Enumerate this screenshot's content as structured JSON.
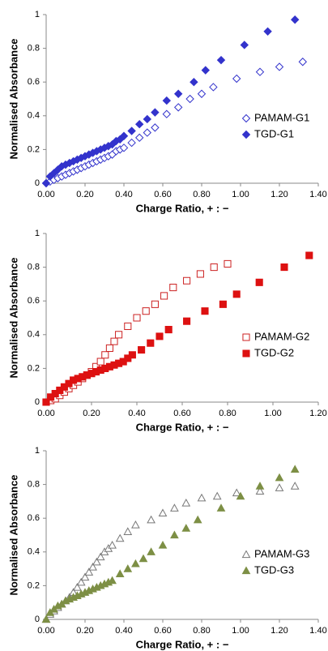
{
  "chart_data": [
    {
      "type": "scatter",
      "xlabel": "Charge Ratio, + : −",
      "ylabel": "Normalised Absorbance",
      "xlim": [
        0,
        1.4
      ],
      "ylim": [
        0,
        1
      ],
      "xticks": [
        {
          "value": 0,
          "label": "0.00"
        },
        {
          "value": 0.2,
          "label": "0.20"
        },
        {
          "value": 0.4,
          "label": "0.40"
        },
        {
          "value": 0.6,
          "label": "0.60"
        },
        {
          "value": 0.8,
          "label": "0.80"
        },
        {
          "value": 1.0,
          "label": "1.00"
        },
        {
          "value": 1.2,
          "label": "1.20"
        },
        {
          "value": 1.4,
          "label": "1.40"
        }
      ],
      "yticks": [
        0,
        0.2,
        0.4,
        0.6,
        0.8,
        1
      ],
      "series": [
        {
          "name": "PAMAM-G1",
          "color": "#3333cc",
          "marker": "diamond",
          "filled": false,
          "x": [
            0,
            0.02,
            0.04,
            0.06,
            0.08,
            0.1,
            0.12,
            0.14,
            0.16,
            0.18,
            0.2,
            0.22,
            0.24,
            0.26,
            0.28,
            0.3,
            0.32,
            0.34,
            0.36,
            0.38,
            0.4,
            0.44,
            0.48,
            0.52,
            0.56,
            0.62,
            0.68,
            0.74,
            0.8,
            0.86,
            0.98,
            1.1,
            1.2,
            1.32
          ],
          "values": [
            0,
            0.01,
            0.02,
            0.03,
            0.04,
            0.05,
            0.06,
            0.07,
            0.08,
            0.09,
            0.1,
            0.11,
            0.12,
            0.13,
            0.14,
            0.15,
            0.16,
            0.17,
            0.19,
            0.2,
            0.21,
            0.24,
            0.27,
            0.3,
            0.33,
            0.41,
            0.45,
            0.5,
            0.53,
            0.57,
            0.62,
            0.66,
            0.69,
            0.72
          ]
        },
        {
          "name": "TGD-G1",
          "color": "#3333cc",
          "marker": "diamond",
          "filled": true,
          "x": [
            0,
            0.02,
            0.04,
            0.06,
            0.08,
            0.1,
            0.12,
            0.14,
            0.16,
            0.18,
            0.2,
            0.22,
            0.24,
            0.26,
            0.28,
            0.3,
            0.32,
            0.34,
            0.36,
            0.38,
            0.4,
            0.44,
            0.48,
            0.52,
            0.56,
            0.62,
            0.68,
            0.76,
            0.82,
            0.9,
            1.02,
            1.14,
            1.28
          ],
          "values": [
            0,
            0.04,
            0.06,
            0.08,
            0.1,
            0.11,
            0.12,
            0.13,
            0.14,
            0.15,
            0.16,
            0.17,
            0.18,
            0.19,
            0.2,
            0.21,
            0.22,
            0.23,
            0.25,
            0.26,
            0.28,
            0.31,
            0.35,
            0.38,
            0.42,
            0.49,
            0.53,
            0.6,
            0.67,
            0.73,
            0.82,
            0.9,
            0.97
          ]
        }
      ]
    },
    {
      "type": "scatter",
      "xlabel": "Charge Ratio, + : −",
      "ylabel": "Normalised Absorbance",
      "xlim": [
        0,
        1.2
      ],
      "ylim": [
        0,
        1
      ],
      "xticks": [
        {
          "value": 0,
          "label": "0.00"
        },
        {
          "value": 0.2,
          "label": "0.20"
        },
        {
          "value": 0.4,
          "label": "0.40"
        },
        {
          "value": 0.6,
          "label": "0.60"
        },
        {
          "value": 0.8,
          "label": "0.80"
        },
        {
          "value": 1.0,
          "label": "1.00"
        },
        {
          "value": 1.2,
          "label": "1.20"
        }
      ],
      "yticks": [
        0,
        0.2,
        0.4,
        0.6,
        0.8,
        1
      ],
      "series": [
        {
          "name": "PAMAM-G2",
          "color": "#cc2222",
          "marker": "square",
          "filled": false,
          "x": [
            0,
            0.02,
            0.04,
            0.06,
            0.08,
            0.1,
            0.12,
            0.14,
            0.16,
            0.18,
            0.2,
            0.22,
            0.24,
            0.26,
            0.28,
            0.3,
            0.32,
            0.36,
            0.4,
            0.44,
            0.48,
            0.52,
            0.56,
            0.62,
            0.68,
            0.74,
            0.8
          ],
          "values": [
            0,
            0.01,
            0.02,
            0.04,
            0.06,
            0.08,
            0.1,
            0.12,
            0.14,
            0.16,
            0.18,
            0.21,
            0.24,
            0.28,
            0.32,
            0.36,
            0.4,
            0.45,
            0.5,
            0.54,
            0.58,
            0.63,
            0.68,
            0.72,
            0.76,
            0.8,
            0.82
          ]
        },
        {
          "name": "TGD-G2",
          "color": "#dd1111",
          "marker": "square",
          "filled": true,
          "x": [
            0,
            0.02,
            0.04,
            0.06,
            0.08,
            0.1,
            0.12,
            0.14,
            0.16,
            0.18,
            0.2,
            0.22,
            0.24,
            0.26,
            0.28,
            0.3,
            0.32,
            0.34,
            0.36,
            0.38,
            0.42,
            0.46,
            0.5,
            0.54,
            0.62,
            0.7,
            0.78,
            0.84,
            0.94,
            1.05,
            1.16
          ],
          "values": [
            0,
            0.03,
            0.05,
            0.07,
            0.09,
            0.11,
            0.13,
            0.14,
            0.15,
            0.16,
            0.17,
            0.18,
            0.19,
            0.2,
            0.21,
            0.22,
            0.23,
            0.24,
            0.26,
            0.28,
            0.31,
            0.35,
            0.39,
            0.43,
            0.48,
            0.54,
            0.58,
            0.64,
            0.71,
            0.8,
            0.87
          ]
        }
      ]
    },
    {
      "type": "scatter",
      "xlabel": "Charge Ratio, + : −",
      "ylabel": "Normalised Absorbance",
      "xlim": [
        0,
        1.4
      ],
      "ylim": [
        0,
        1
      ],
      "xticks": [
        {
          "value": 0,
          "label": "0.00"
        },
        {
          "value": 0.2,
          "label": "0.20"
        },
        {
          "value": 0.4,
          "label": "0.40"
        },
        {
          "value": 0.6,
          "label": "0.60"
        },
        {
          "value": 0.8,
          "label": "0.80"
        },
        {
          "value": 1.0,
          "label": "1.00"
        },
        {
          "value": 1.2,
          "label": "1.20"
        },
        {
          "value": 1.4,
          "label": "1.40"
        }
      ],
      "yticks": [
        0,
        0.2,
        0.4,
        0.6,
        0.8,
        1
      ],
      "series": [
        {
          "name": "PAMAM-G3",
          "color": "#777777",
          "marker": "triangle",
          "filled": false,
          "x": [
            0,
            0.02,
            0.04,
            0.06,
            0.08,
            0.1,
            0.12,
            0.14,
            0.16,
            0.18,
            0.2,
            0.22,
            0.24,
            0.26,
            0.28,
            0.3,
            0.32,
            0.34,
            0.38,
            0.42,
            0.46,
            0.54,
            0.6,
            0.66,
            0.72,
            0.8,
            0.88,
            0.98,
            1.1,
            1.2,
            1.28
          ],
          "values": [
            0,
            0.03,
            0.05,
            0.07,
            0.09,
            0.11,
            0.13,
            0.16,
            0.19,
            0.22,
            0.25,
            0.28,
            0.31,
            0.34,
            0.37,
            0.4,
            0.42,
            0.44,
            0.48,
            0.52,
            0.56,
            0.59,
            0.63,
            0.66,
            0.69,
            0.72,
            0.73,
            0.75,
            0.76,
            0.78,
            0.79
          ]
        },
        {
          "name": "TGD-G3",
          "color": "#7d8f45",
          "marker": "triangle",
          "filled": true,
          "x": [
            0,
            0.02,
            0.04,
            0.06,
            0.08,
            0.1,
            0.12,
            0.14,
            0.16,
            0.18,
            0.2,
            0.22,
            0.24,
            0.26,
            0.28,
            0.3,
            0.32,
            0.34,
            0.38,
            0.42,
            0.46,
            0.5,
            0.54,
            0.6,
            0.66,
            0.72,
            0.78,
            0.9,
            1.0,
            1.1,
            1.2,
            1.28
          ],
          "values": [
            0,
            0.04,
            0.06,
            0.08,
            0.09,
            0.11,
            0.12,
            0.13,
            0.14,
            0.15,
            0.16,
            0.17,
            0.18,
            0.19,
            0.2,
            0.21,
            0.22,
            0.23,
            0.27,
            0.3,
            0.33,
            0.36,
            0.4,
            0.44,
            0.5,
            0.54,
            0.59,
            0.66,
            0.73,
            0.79,
            0.84,
            0.89
          ]
        }
      ]
    }
  ]
}
